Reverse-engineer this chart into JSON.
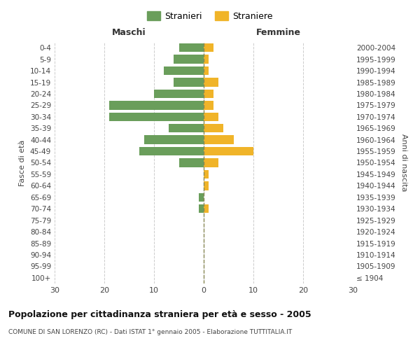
{
  "age_groups": [
    "100+",
    "95-99",
    "90-94",
    "85-89",
    "80-84",
    "75-79",
    "70-74",
    "65-69",
    "60-64",
    "55-59",
    "50-54",
    "45-49",
    "40-44",
    "35-39",
    "30-34",
    "25-29",
    "20-24",
    "15-19",
    "10-14",
    "5-9",
    "0-4"
  ],
  "birth_years": [
    "≤ 1904",
    "1905-1909",
    "1910-1914",
    "1915-1919",
    "1920-1924",
    "1925-1929",
    "1930-1934",
    "1935-1939",
    "1940-1944",
    "1945-1949",
    "1950-1954",
    "1955-1959",
    "1960-1964",
    "1965-1969",
    "1970-1974",
    "1975-1979",
    "1980-1984",
    "1985-1989",
    "1990-1994",
    "1995-1999",
    "2000-2004"
  ],
  "males": [
    0,
    0,
    0,
    0,
    0,
    0,
    1,
    1,
    0,
    0,
    5,
    13,
    12,
    7,
    19,
    19,
    10,
    6,
    8,
    6,
    5
  ],
  "females": [
    0,
    0,
    0,
    0,
    0,
    0,
    1,
    0,
    1,
    1,
    3,
    10,
    6,
    4,
    3,
    2,
    2,
    3,
    1,
    1,
    2
  ],
  "male_color": "#6a9e5b",
  "female_color": "#f0b429",
  "background_color": "#ffffff",
  "grid_color": "#cccccc",
  "title": "Popolazione per cittadinanza straniera per età e sesso - 2005",
  "subtitle": "COMUNE DI SAN LORENZO (RC) - Dati ISTAT 1° gennaio 2005 - Elaborazione TUTTITALIA.IT",
  "left_label": "Maschi",
  "right_label": "Femmine",
  "ylabel": "Fasce di età",
  "ylabel_right": "Anni di nascita",
  "legend_male": "Stranieri",
  "legend_female": "Straniere",
  "xlim": 30,
  "center_line_color": "#888855",
  "bar_height": 0.75
}
